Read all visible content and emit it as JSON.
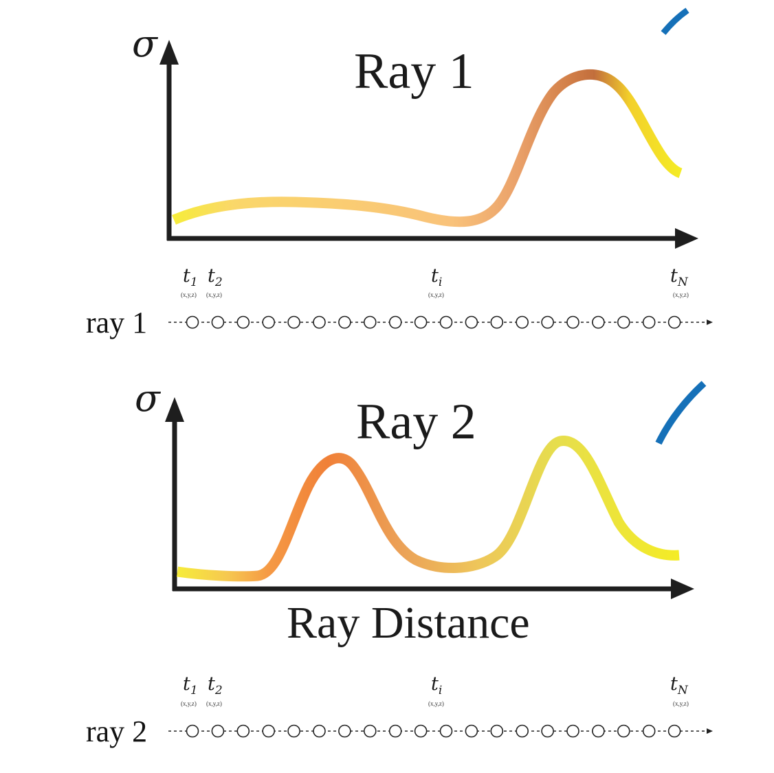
{
  "colors": {
    "curve_low": "#f6e82a",
    "curve_light_orange": "#f9c270",
    "curve_brown": "#c4703c",
    "curve_orange": "#f07a3a",
    "curve_yellow": "#f2e11d",
    "accent_blue": "#1570b8",
    "axis": "#1e1e1e"
  },
  "axis_symbol": "σ",
  "x_axis_label": "Ray Distance",
  "panels": [
    {
      "title": "Ray 1",
      "ray_label": "ray 1",
      "density_curve": [
        0.12,
        0.2,
        0.24,
        0.23,
        0.16,
        0.14,
        0.55,
        0.98,
        0.7,
        0.42
      ],
      "sample_count": 20,
      "sample_labels": [
        {
          "t": "t",
          "sub": "1",
          "coord": "(x,y,z)"
        },
        {
          "t": "t",
          "sub": "2",
          "coord": "(x,y,z)"
        },
        {
          "t": "t",
          "sub": "i",
          "coord": "(x,y,z)"
        },
        {
          "t": "t",
          "sub": "N",
          "coord": "(x,y,z)"
        }
      ]
    },
    {
      "title": "Ray 2",
      "ray_label": "ray 2",
      "density_curve": [
        0.1,
        0.07,
        0.07,
        0.95,
        0.42,
        0.14,
        0.3,
        0.98,
        0.4,
        0.2
      ],
      "sample_count": 20,
      "sample_labels": [
        {
          "t": "t",
          "sub": "1",
          "coord": "(x,y,z)"
        },
        {
          "t": "t",
          "sub": "2",
          "coord": "(x,y,z)"
        },
        {
          "t": "t",
          "sub": "i",
          "coord": "(x,y,z)"
        },
        {
          "t": "t",
          "sub": "N",
          "coord": "(x,y,z)"
        }
      ]
    }
  ]
}
